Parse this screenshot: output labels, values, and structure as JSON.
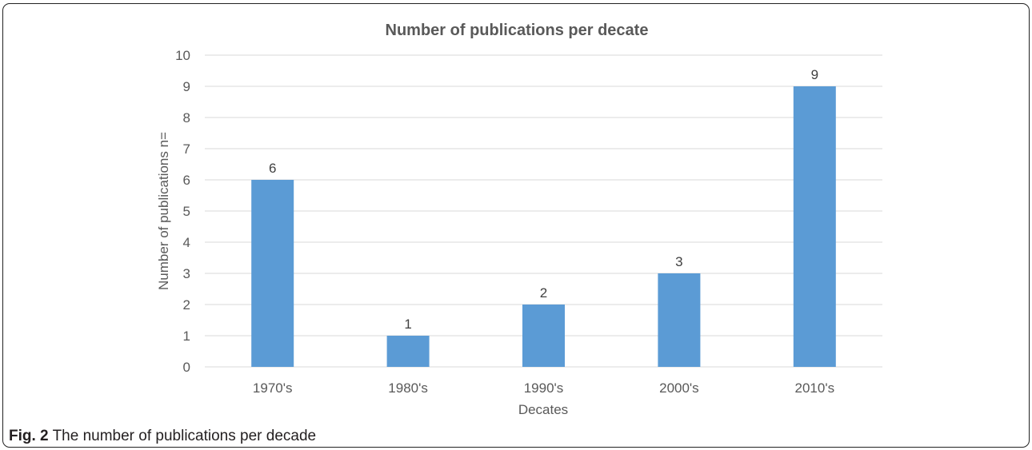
{
  "caption": {
    "label": "Fig. 2",
    "text": "The number of publications per decade"
  },
  "colors": {
    "bar": "#5b9bd5",
    "grid": "#d9d9d9",
    "text": "#595959",
    "title": "#595959"
  },
  "chart_data": {
    "type": "bar",
    "title": "Number of publications per decate",
    "xlabel": "Decates",
    "ylabel": "Number of publications n=",
    "categories": [
      "1970's",
      "1980's",
      "1990's",
      "2000's",
      "2010's"
    ],
    "values": [
      6,
      1,
      2,
      3,
      9
    ],
    "data_labels": [
      "6",
      "1",
      "2",
      "3",
      "9"
    ],
    "ylim": [
      0,
      10
    ],
    "yticks": [
      "0",
      "1",
      "2",
      "3",
      "4",
      "5",
      "6",
      "7",
      "8",
      "9",
      "10"
    ],
    "grid": true,
    "legend": "none"
  }
}
